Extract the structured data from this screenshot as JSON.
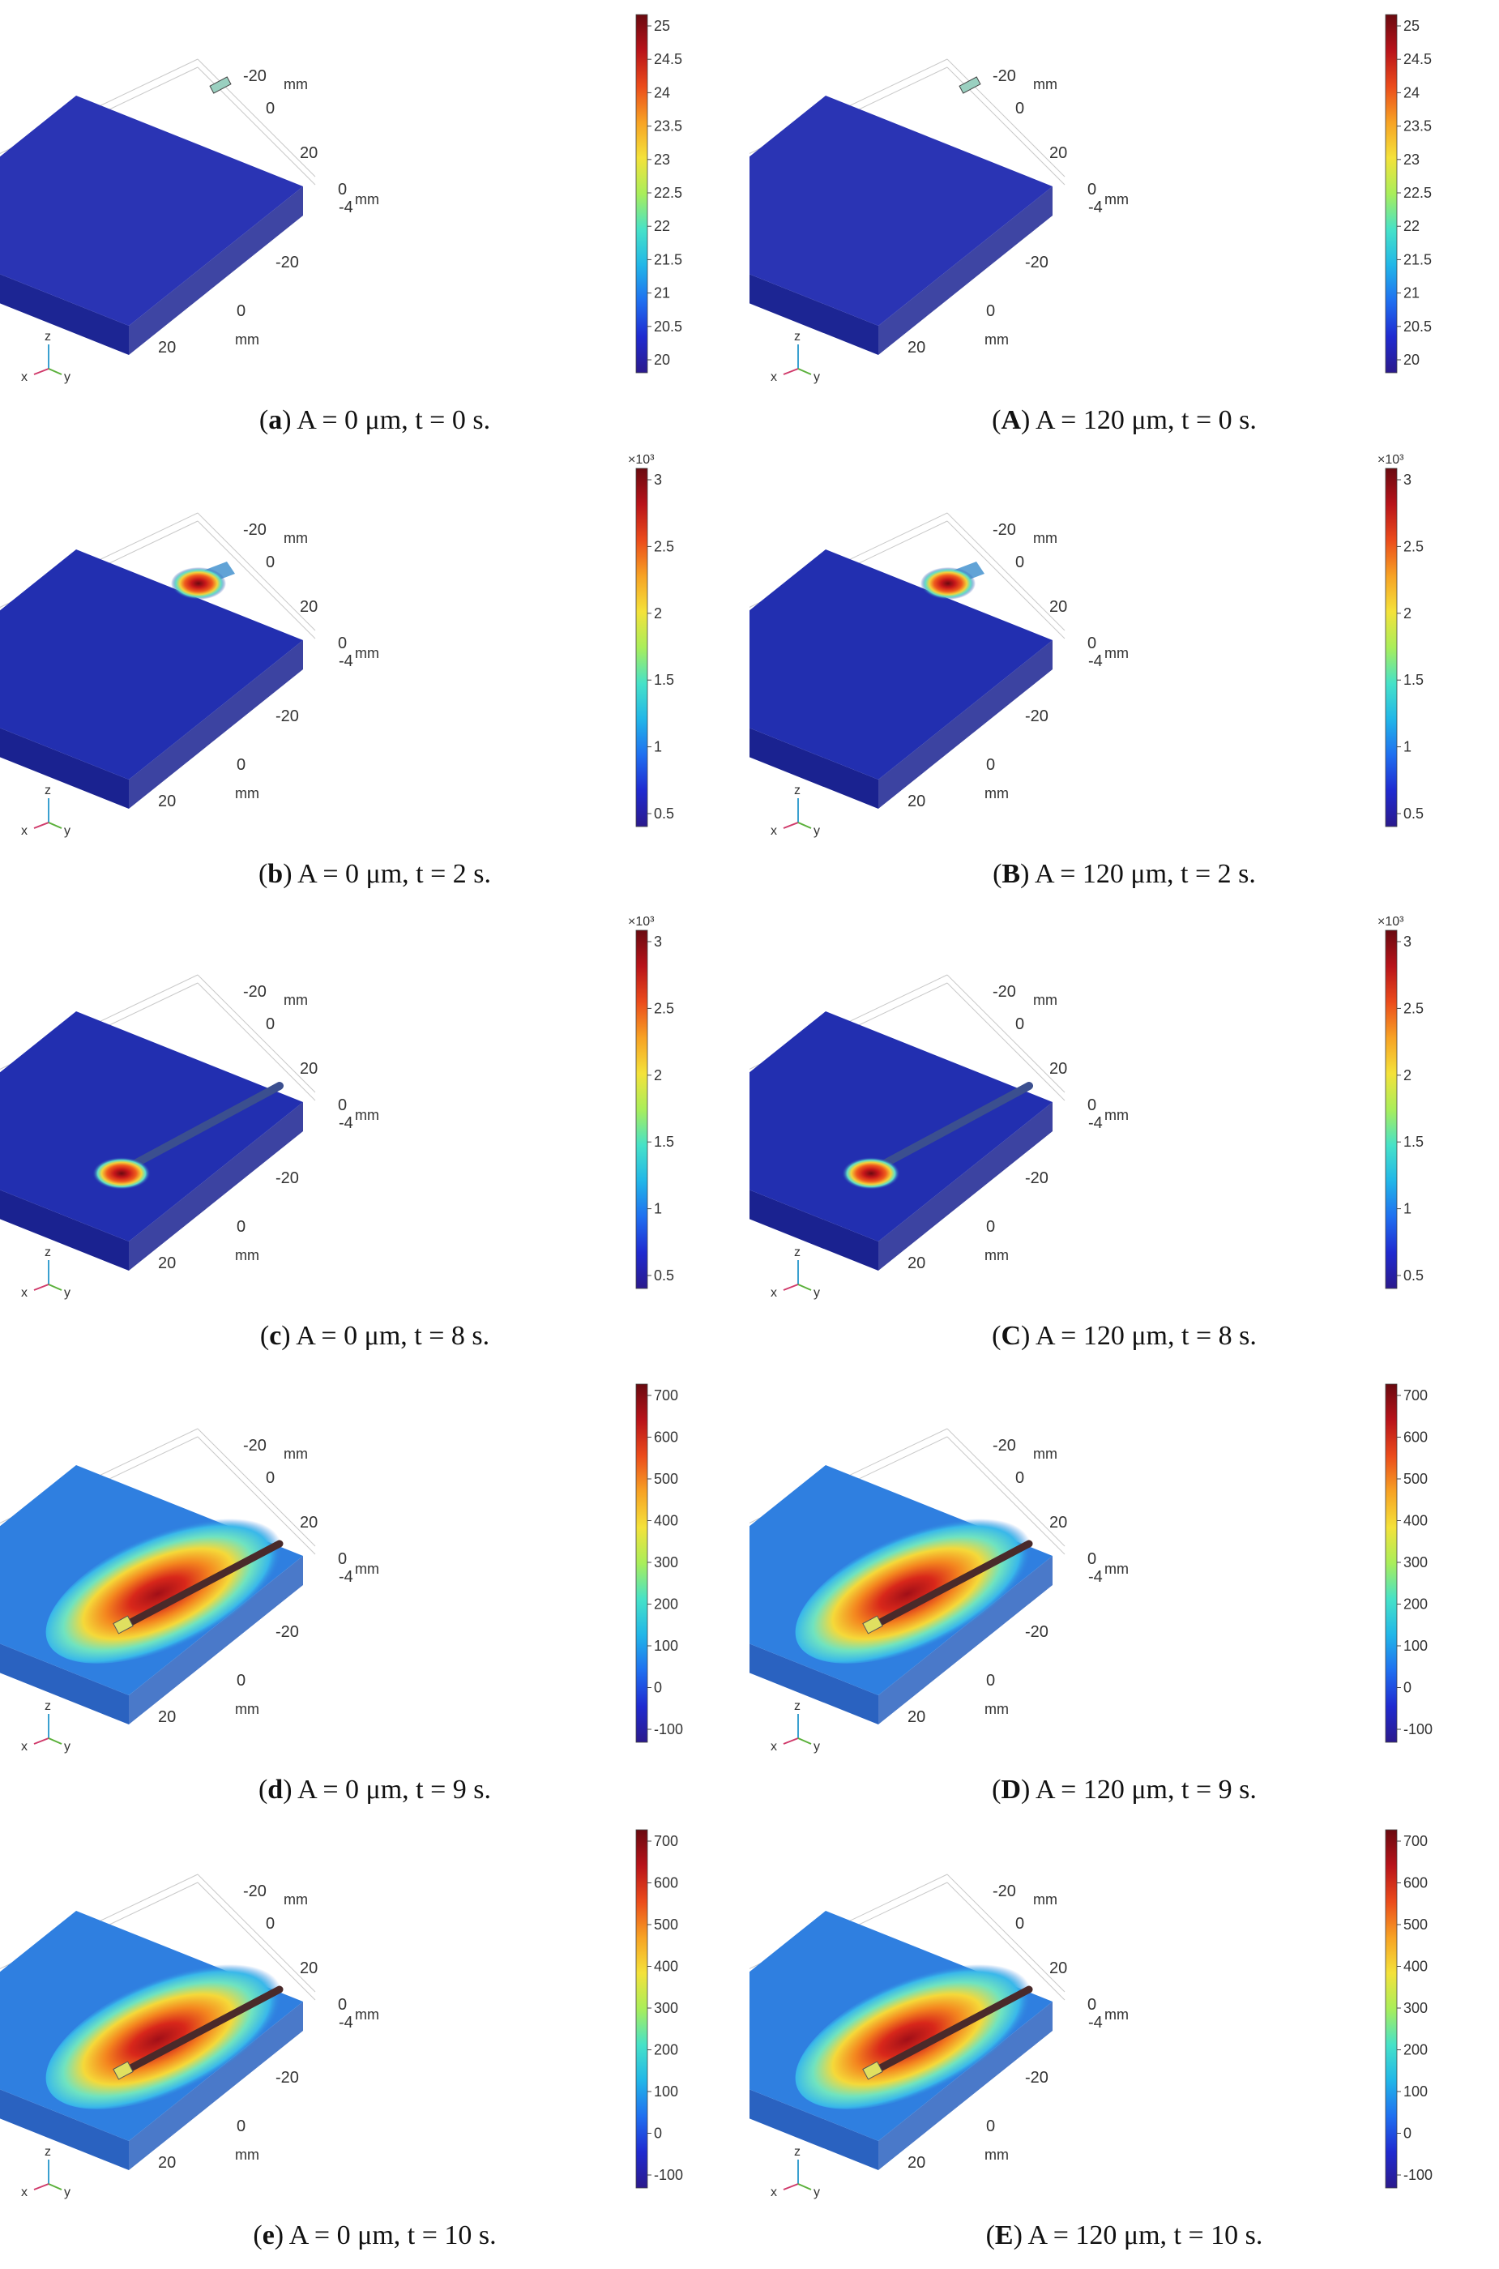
{
  "colormap": [
    "#2b1a8c",
    "#1f2ad0",
    "#1f6ff0",
    "#21b6e8",
    "#46e2c8",
    "#a9ee5a",
    "#f4e23a",
    "#f7a224",
    "#eb4b1b",
    "#b8131a",
    "#6a0a10"
  ],
  "axes": {
    "unit": "mm",
    "x_ticks": [
      "-20",
      "0",
      "20"
    ],
    "y_ticks": [
      "-20",
      "0",
      "20"
    ],
    "z_tick": "-4",
    "z_tick_zero": "0",
    "triad": {
      "x": "x",
      "y": "y",
      "z": "z"
    }
  },
  "panels": [
    {
      "id": "a",
      "label": "a",
      "caption": "A = 0 μm, t = 0 s.",
      "exponent": "",
      "ticks": [
        "25",
        "24.5",
        "24",
        "23.5",
        "23",
        "22.5",
        "22",
        "21.5",
        "21",
        "20.5",
        "20"
      ],
      "heat": "none",
      "base": "#2a34b4",
      "side": "#1c2593"
    },
    {
      "id": "A",
      "label": "A",
      "caption": "A = 120 μm, t = 0 s.",
      "exponent": "",
      "ticks": [
        "25",
        "24.5",
        "24",
        "23.5",
        "23",
        "22.5",
        "22",
        "21.5",
        "21",
        "20.5",
        "20"
      ],
      "heat": "none",
      "base": "#2a34b4",
      "side": "#1c2593"
    },
    {
      "id": "b",
      "label": "b",
      "caption": "A = 0 μm, t = 2 s.",
      "exponent": "×10³",
      "ticks": [
        "3",
        "2.5",
        "2",
        "1.5",
        "1",
        "0.5"
      ],
      "heat": "start",
      "base": "#222fb0",
      "side": "#1a2290"
    },
    {
      "id": "B",
      "label": "B",
      "caption": "A = 120 μm, t = 2 s.",
      "exponent": "×10³",
      "ticks": [
        "3",
        "2.5",
        "2",
        "1.5",
        "1",
        "0.5"
      ],
      "heat": "start",
      "base": "#222fb0",
      "side": "#1a2290"
    },
    {
      "id": "c",
      "label": "c",
      "caption": "A = 0 μm, t = 8 s.",
      "exponent": "×10³",
      "ticks": [
        "3",
        "2.5",
        "2",
        "1.5",
        "1",
        "0.5"
      ],
      "heat": "end",
      "base": "#222fb0",
      "side": "#1a2290"
    },
    {
      "id": "C",
      "label": "C",
      "caption": "A = 120 μm, t = 8 s.",
      "exponent": "×10³",
      "ticks": [
        "3",
        "2.5",
        "2",
        "1.5",
        "1",
        "0.5"
      ],
      "heat": "end",
      "base": "#222fb0",
      "side": "#1a2290"
    },
    {
      "id": "d",
      "label": "d",
      "caption": "A = 0 μm, t = 9 s.",
      "exponent": "",
      "ticks": [
        "700",
        "600",
        "500",
        "400",
        "300",
        "200",
        "100",
        "0",
        "-100"
      ],
      "heat": "cool",
      "base": "#2f7fe0",
      "side": "#2a62c0"
    },
    {
      "id": "D",
      "label": "D",
      "caption": "A = 120 μm, t = 9 s.",
      "exponent": "",
      "ticks": [
        "700",
        "600",
        "500",
        "400",
        "300",
        "200",
        "100",
        "0",
        "-100"
      ],
      "heat": "cool",
      "base": "#2f7fe0",
      "side": "#2a62c0"
    },
    {
      "id": "e",
      "label": "e",
      "caption": "A = 0 μm, t = 10 s.",
      "exponent": "",
      "ticks": [
        "700",
        "600",
        "500",
        "400",
        "300",
        "200",
        "100",
        "0",
        "-100"
      ],
      "heat": "cool",
      "base": "#2f7fe0",
      "side": "#2a62c0"
    },
    {
      "id": "E",
      "label": "E",
      "caption": "A = 120 μm, t = 10 s.",
      "exponent": "",
      "ticks": [
        "700",
        "600",
        "500",
        "400",
        "300",
        "200",
        "100",
        "0",
        "-100"
      ],
      "heat": "cool",
      "base": "#2f7fe0",
      "side": "#2a62c0"
    }
  ]
}
